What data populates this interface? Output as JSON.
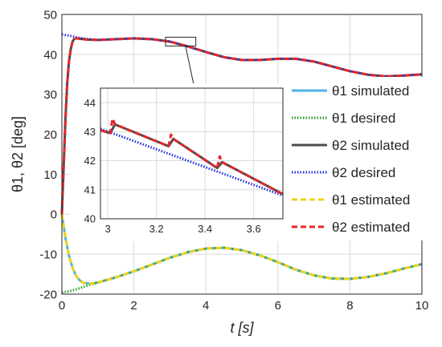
{
  "chart_data": [
    {
      "type": "line",
      "xlabel": "t [s]",
      "ylabel": "θ1, θ2 [deg]",
      "xlim": [
        0,
        10
      ],
      "ylim": [
        -20,
        50
      ],
      "xticks": [
        0,
        2,
        4,
        6,
        8,
        10
      ],
      "yticks": [
        -20,
        -10,
        0,
        10,
        20,
        30,
        40,
        50
      ],
      "xtick_labels": [
        "0",
        "2",
        "4",
        "6",
        "8",
        "10"
      ],
      "ytick_labels": [
        "-20",
        "-10",
        "0",
        "10",
        "20",
        "30",
        "40",
        "50"
      ],
      "grid": true,
      "legend_position": "right",
      "series": [
        {
          "name": "θ1 simulated",
          "color": "#4fb3e6",
          "style": "solid",
          "x": [
            0,
            0.05,
            0.1,
            0.2,
            0.3,
            0.4,
            0.5,
            0.6,
            0.8,
            1,
            1.5,
            2,
            2.5,
            3,
            3.5,
            4,
            4.5,
            5,
            5.5,
            6,
            6.5,
            7,
            7.5,
            8,
            8.5,
            9,
            9.5,
            10
          ],
          "y": [
            0,
            -3,
            -6,
            -10.5,
            -13.5,
            -15.5,
            -16.6,
            -17.2,
            -17.4,
            -17.1,
            -15.8,
            -14.3,
            -12.6,
            -10.9,
            -9.5,
            -8.6,
            -8.4,
            -9,
            -10.3,
            -12,
            -13.9,
            -15.3,
            -16.1,
            -16.2,
            -15.7,
            -14.8,
            -13.6,
            -12.5
          ]
        },
        {
          "name": "θ1 desired",
          "color": "#2a9a2a",
          "style": "dotted",
          "x": [
            0,
            0.2,
            0.4,
            0.6,
            0.8,
            1,
            1.5,
            2,
            2.5,
            3,
            3.5,
            4,
            4.5,
            5,
            5.5,
            6,
            6.5,
            7,
            7.5,
            8,
            8.5,
            9,
            9.5,
            10
          ],
          "y": [
            -19.6,
            -19.3,
            -18.8,
            -18.2,
            -17.6,
            -17.1,
            -15.8,
            -14.3,
            -12.6,
            -10.9,
            -9.5,
            -8.6,
            -8.4,
            -9,
            -10.3,
            -12,
            -13.9,
            -15.3,
            -16.1,
            -16.2,
            -15.7,
            -14.8,
            -13.6,
            -12.5
          ]
        },
        {
          "name": "θ2 simulated",
          "color": "#4d4d4d",
          "style": "solid",
          "x": [
            0,
            0.05,
            0.1,
            0.15,
            0.2,
            0.25,
            0.3,
            0.35,
            0.4,
            0.5,
            0.7,
            1,
            1.5,
            2,
            2.5,
            3,
            3.5,
            4,
            4.5,
            5,
            5.5,
            6,
            6.5,
            7,
            7.5,
            8,
            8.5,
            9,
            9.5,
            10
          ],
          "y": [
            0,
            12,
            24,
            33,
            38.5,
            41.5,
            43.3,
            43.9,
            44,
            43.9,
            43.7,
            43.6,
            43.8,
            44,
            43.8,
            43.2,
            42,
            40.6,
            39.3,
            38.6,
            38.6,
            38.9,
            38.9,
            38.2,
            37,
            35.8,
            34.9,
            34.5,
            34.7,
            35
          ]
        },
        {
          "name": "θ2 desired",
          "color": "#1f2ee0",
          "style": "dotted",
          "x": [
            0,
            0.25,
            0.5,
            0.75,
            1,
            1.5,
            2,
            2.5,
            3,
            3.5,
            4,
            4.5,
            5,
            5.5,
            6,
            6.5,
            7,
            7.5,
            8,
            8.5,
            9,
            9.5,
            10
          ],
          "y": [
            45,
            44.6,
            44.1,
            43.8,
            43.6,
            43.8,
            44,
            43.8,
            43.2,
            42,
            40.6,
            39.3,
            38.6,
            38.6,
            38.9,
            38.9,
            38.2,
            37,
            35.8,
            34.9,
            34.5,
            34.7,
            35
          ]
        },
        {
          "name": "θ1 estimated",
          "color": "#f2d21b",
          "style": "dashed",
          "x": [
            0,
            0.05,
            0.1,
            0.2,
            0.3,
            0.4,
            0.5,
            0.6,
            0.8,
            1,
            1.5,
            2,
            2.5,
            3,
            3.5,
            4,
            4.5,
            5,
            5.5,
            6,
            6.5,
            7,
            7.5,
            8,
            8.5,
            9,
            9.5,
            10
          ],
          "y": [
            0,
            -3,
            -6,
            -10.5,
            -13.5,
            -15.5,
            -16.6,
            -17.2,
            -17.4,
            -17.1,
            -15.8,
            -14.3,
            -12.6,
            -10.9,
            -9.5,
            -8.6,
            -8.4,
            -9,
            -10.3,
            -12,
            -13.9,
            -15.3,
            -16.1,
            -16.2,
            -15.7,
            -14.8,
            -13.6,
            -12.5
          ]
        },
        {
          "name": "θ2 estimated",
          "color": "#e8262a",
          "style": "dashed",
          "x": [
            0,
            0.05,
            0.1,
            0.15,
            0.2,
            0.25,
            0.3,
            0.35,
            0.4,
            0.5,
            0.7,
            1,
            1.5,
            2,
            2.5,
            3,
            3.5,
            4,
            4.5,
            5,
            5.5,
            6,
            6.5,
            7,
            7.5,
            8,
            8.5,
            9,
            9.5,
            10
          ],
          "y": [
            0,
            12,
            24,
            33,
            38.5,
            41.5,
            43.3,
            43.9,
            44,
            43.9,
            43.7,
            43.6,
            43.8,
            44,
            43.8,
            43.2,
            42,
            40.6,
            39.3,
            38.6,
            38.6,
            38.9,
            38.9,
            38.2,
            37,
            35.8,
            34.9,
            34.5,
            34.7,
            35
          ]
        }
      ],
      "zoom_box": {
        "x": [
          2.88,
          3.72
        ],
        "y": [
          42.1,
          44.3
        ]
      }
    },
    {
      "type": "line",
      "role": "inset-zoom",
      "xlim": [
        2.97,
        3.72
      ],
      "ylim": [
        40,
        44.5
      ],
      "xticks": [
        3,
        3.2,
        3.4,
        3.6
      ],
      "yticks": [
        40,
        41,
        42,
        43,
        44
      ],
      "xtick_labels": [
        "3",
        "3.2",
        "3.4",
        "3.6"
      ],
      "ytick_labels": [
        "40",
        "41",
        "42",
        "43",
        "44"
      ],
      "grid": true,
      "series": [
        {
          "name": "θ2 desired",
          "color": "#1f2ee0",
          "style": "dotted",
          "x": [
            2.97,
            3.72
          ],
          "y": [
            43.1,
            40.8
          ]
        },
        {
          "name": "θ2 simulated",
          "color": "#4d4d4d",
          "style": "solid",
          "x": [
            2.97,
            3.01,
            3.03,
            3.25,
            3.27,
            3.45,
            3.47,
            3.72
          ],
          "y": [
            43.05,
            42.95,
            43.25,
            42.5,
            42.75,
            41.75,
            41.95,
            40.85
          ]
        },
        {
          "name": "θ2 estimated",
          "color": "#e8262a",
          "style": "dashed",
          "x": [
            2.97,
            3.01,
            3.02,
            3.03,
            3.25,
            3.26,
            3.27,
            3.45,
            3.46,
            3.47,
            3.72
          ],
          "y": [
            43.05,
            42.95,
            43.45,
            43.25,
            42.5,
            42.9,
            42.75,
            41.75,
            42.15,
            41.95,
            40.85
          ]
        }
      ]
    }
  ]
}
